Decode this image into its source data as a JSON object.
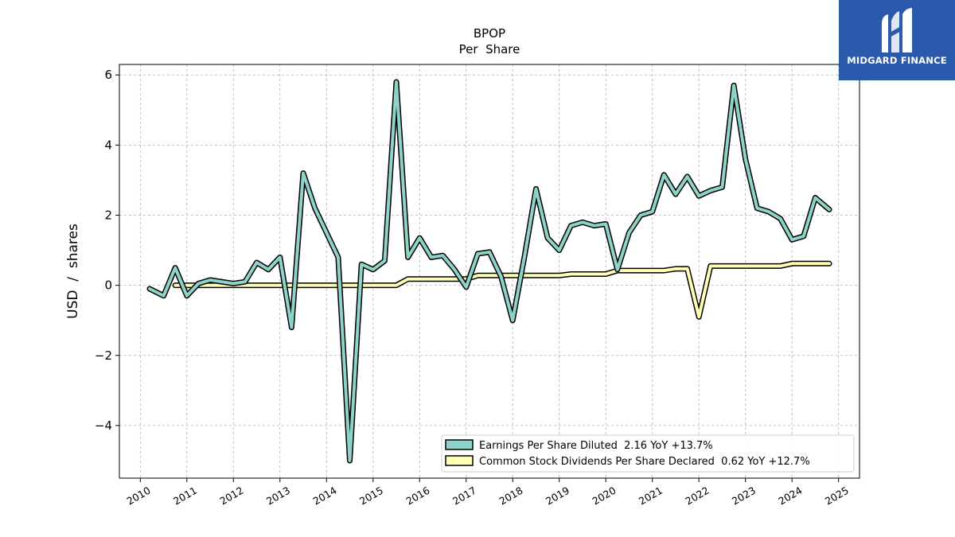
{
  "logo": {
    "text": "MIDGARD FINANCE",
    "icon": "stylized-m-logo-icon",
    "background": "#2b5aac"
  },
  "chart_data": {
    "type": "line",
    "title": "BPOP",
    "subtitle": "Per  Share",
    "ylabel": "USD  /  shares",
    "xlabel": "",
    "xlim": [
      2009.55,
      2025.45
    ],
    "ylim": [
      -5.5,
      6.3
    ],
    "xticks": [
      2010,
      2011,
      2012,
      2013,
      2014,
      2015,
      2016,
      2017,
      2018,
      2019,
      2020,
      2021,
      2022,
      2023,
      2024,
      2025
    ],
    "yticks": [
      -4,
      -2,
      0,
      2,
      4,
      6
    ],
    "ytick_labels": [
      "−4",
      "−2",
      "0",
      "2",
      "4",
      "6"
    ],
    "grid": true,
    "legend_position": "lower-right",
    "series": [
      {
        "name": "Earnings Per Share Diluted  2.16 YoY +13.7%",
        "color": "#8dd3c7",
        "x": [
          2010.2,
          2010.5,
          2010.75,
          2011.0,
          2011.25,
          2011.5,
          2011.75,
          2012.0,
          2012.25,
          2012.5,
          2012.75,
          2013.0,
          2013.25,
          2013.5,
          2013.75,
          2014.0,
          2014.25,
          2014.5,
          2014.75,
          2015.0,
          2015.25,
          2015.5,
          2015.75,
          2016.0,
          2016.25,
          2016.5,
          2016.75,
          2017.0,
          2017.25,
          2017.5,
          2017.75,
          2018.0,
          2018.25,
          2018.5,
          2018.75,
          2019.0,
          2019.25,
          2019.5,
          2019.75,
          2020.0,
          2020.25,
          2020.5,
          2020.75,
          2021.0,
          2021.25,
          2021.5,
          2021.75,
          2022.0,
          2022.25,
          2022.5,
          2022.75,
          2023.0,
          2023.25,
          2023.5,
          2023.75,
          2024.0,
          2024.25,
          2024.5,
          2024.8
        ],
        "values": [
          -0.1,
          -0.3,
          0.5,
          -0.3,
          0.05,
          0.15,
          0.1,
          0.05,
          0.1,
          0.65,
          0.45,
          0.8,
          -1.2,
          3.2,
          2.2,
          1.5,
          0.8,
          -5.0,
          0.6,
          0.45,
          0.7,
          5.8,
          0.8,
          1.35,
          0.8,
          0.85,
          0.45,
          -0.05,
          0.9,
          0.95,
          0.25,
          -1.0,
          0.8,
          2.75,
          1.35,
          1.0,
          1.7,
          1.8,
          1.7,
          1.75,
          0.45,
          1.5,
          2.0,
          2.1,
          3.15,
          2.6,
          3.1,
          2.55,
          2.7,
          2.8,
          5.7,
          3.6,
          2.2,
          2.1,
          1.9,
          1.3,
          1.4,
          2.5,
          2.16
        ]
      },
      {
        "name": "Common Stock Dividends Per Share Declared  0.62 YoY +12.7%",
        "color": "#ffffb3",
        "x": [
          2010.75,
          2015.5,
          2015.75,
          2016.75,
          2017.0,
          2017.25,
          2019.0,
          2019.25,
          2020.0,
          2020.25,
          2021.25,
          2021.5,
          2021.75,
          2022.0,
          2022.25,
          2023.75,
          2024.0,
          2024.8
        ],
        "values": [
          0.0,
          0.0,
          0.18,
          0.18,
          0.18,
          0.28,
          0.28,
          0.32,
          0.32,
          0.42,
          0.42,
          0.47,
          0.47,
          -0.9,
          0.55,
          0.55,
          0.62,
          0.62
        ]
      }
    ]
  }
}
